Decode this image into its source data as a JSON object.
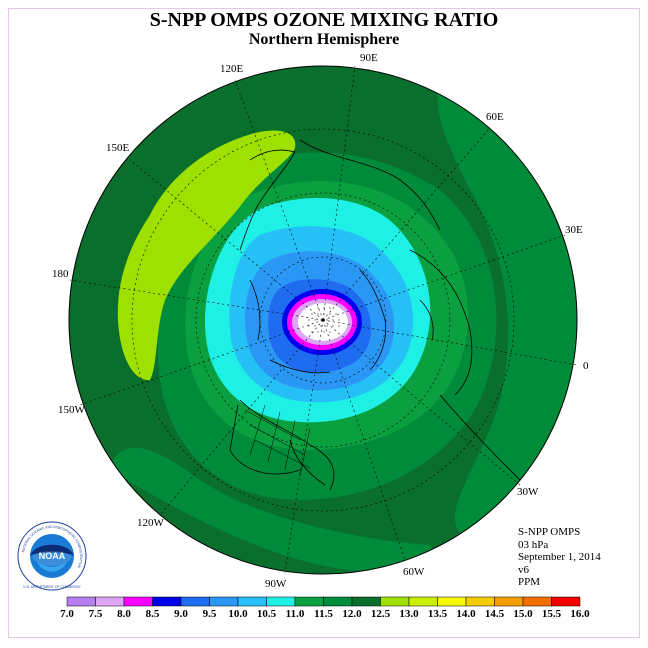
{
  "title": "S-NPP OMPS OZONE MIXING RATIO",
  "subtitle": "Northern Hemisphere",
  "longitude_labels": [
    "90E",
    "60E",
    "30E",
    "0",
    "30W",
    "60W",
    "90W",
    "120W",
    "150W",
    "180",
    "150E",
    "120E"
  ],
  "info": {
    "instrument": "S-NPP OMPS",
    "level": "03 hPa",
    "date": "September 1, 2014",
    "version": "v6",
    "units": "PPM"
  },
  "logo": {
    "text": "NOAA",
    "ring_text": "NATIONAL OCEANIC AND ATMOSPHERIC ADMINISTRATION",
    "bottom_text": "U.S. DEPARTMENT OF COMMERCE"
  },
  "colorbar": {
    "ticks": [
      "7.0",
      "7.5",
      "8.0",
      "8.5",
      "9.0",
      "9.5",
      "10.0",
      "10.5",
      "11.0",
      "11.5",
      "12.0",
      "12.5",
      "13.0",
      "13.5",
      "14.0",
      "14.5",
      "15.0",
      "15.5",
      "16.0"
    ],
    "colors": [
      "#b57ff0",
      "#dca6f5",
      "#ff00ff",
      "#0000ee",
      "#1f6cf0",
      "#2b97f5",
      "#25c0f5",
      "#1ff0e6",
      "#0aa040",
      "#008b3a",
      "#0a6e2d",
      "#9ee000",
      "#c8f000",
      "#f8f800",
      "#f5cc00",
      "#f5a000",
      "#f56e00",
      "#f50000",
      "#8a5a3c"
    ]
  },
  "chart_data": {
    "type": "heatmap",
    "projection": "north polar stereographic",
    "field": "ozone mixing ratio",
    "units": "PPM",
    "pressure_level": "03 hPa",
    "date": "September 1, 2014",
    "scale_min": 7.0,
    "scale_max": 16.0,
    "scale_step": 0.5
  }
}
